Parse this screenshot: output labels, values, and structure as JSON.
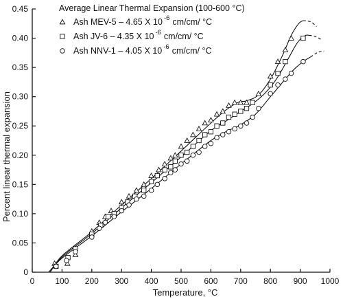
{
  "chart_data": {
    "type": "scatter",
    "title": "",
    "xlabel": "Temperature, °C",
    "ylabel": "Percent linear thermal expansion",
    "xlim": [
      0,
      1000
    ],
    "ylim": [
      0,
      0.45
    ],
    "x_ticks": [
      0,
      100,
      200,
      300,
      400,
      500,
      600,
      700,
      800,
      900,
      1000
    ],
    "y_ticks": [
      0,
      0.05,
      0.1,
      0.15,
      0.2,
      0.25,
      0.3,
      0.35,
      0.4,
      0.45
    ],
    "x_tick_labels": [
      "0",
      "100",
      "200",
      "300",
      "400",
      "500",
      "600",
      "700",
      "800",
      "900",
      "1000"
    ],
    "y_tick_labels": [
      "0",
      "0.05",
      "0.10",
      "0.15",
      "0.20",
      "0.25",
      "0.30",
      "0.35",
      "0.40",
      "0.45"
    ],
    "grid": false,
    "legend_position": "top-left",
    "legend_title": "Average Linear Thermal Expansion (100-600 °C)",
    "series": [
      {
        "name": "Ash MEV-5",
        "legend_label": "Ash MEV-5 – 4.65 X 10",
        "legend_exponent": "-6",
        "legend_unit": "cm/cm/ °C",
        "marker": "triangle",
        "x": [
          75,
          118,
          145,
          200,
          225,
          245,
          265,
          300,
          325,
          350,
          375,
          400,
          425,
          445,
          465,
          480,
          500,
          520,
          540,
          560,
          580,
          600,
          620,
          640,
          660,
          680,
          700,
          720,
          760,
          800,
          825,
          850,
          870
        ],
        "y": [
          0.015,
          0.015,
          0.03,
          0.07,
          0.085,
          0.095,
          0.105,
          0.12,
          0.13,
          0.14,
          0.15,
          0.165,
          0.175,
          0.185,
          0.195,
          0.2,
          0.215,
          0.225,
          0.235,
          0.245,
          0.255,
          0.26,
          0.27,
          0.275,
          0.285,
          0.29,
          0.29,
          0.29,
          0.305,
          0.335,
          0.36,
          0.38,
          0.4
        ],
        "curve": {
          "x": [
            60,
            100,
            200,
            300,
            400,
            500,
            600,
            650,
            690,
            720,
            760,
            800,
            840,
            870,
            895,
            910
          ],
          "y": [
            0.0,
            0.028,
            0.069,
            0.115,
            0.16,
            0.207,
            0.255,
            0.277,
            0.29,
            0.293,
            0.303,
            0.33,
            0.37,
            0.405,
            0.425,
            0.43
          ]
        },
        "extension": {
          "x": [
            910,
            935,
            955
          ],
          "y": [
            0.43,
            0.428,
            0.42
          ]
        }
      },
      {
        "name": "Ash JV-6",
        "legend_label": "Ash JV-6 – 4.35 X 10",
        "legend_exponent": "-6",
        "legend_unit": "cm/cm/ °C",
        "marker": "square",
        "x": [
          80,
          120,
          145,
          200,
          230,
          255,
          275,
          300,
          320,
          345,
          375,
          400,
          420,
          445,
          465,
          480,
          500,
          520,
          540,
          560,
          580,
          600,
          620,
          640,
          660,
          680,
          700,
          720,
          740,
          800,
          825,
          850,
          910
        ],
        "y": [
          0.01,
          0.025,
          0.04,
          0.065,
          0.08,
          0.095,
          0.1,
          0.11,
          0.12,
          0.13,
          0.14,
          0.155,
          0.165,
          0.175,
          0.18,
          0.19,
          0.2,
          0.205,
          0.215,
          0.225,
          0.235,
          0.24,
          0.25,
          0.255,
          0.265,
          0.27,
          0.275,
          0.28,
          0.29,
          0.32,
          0.34,
          0.36,
          0.4
        ],
        "curve": {
          "x": [
            60,
            100,
            200,
            300,
            400,
            500,
            600,
            650,
            700,
            740,
            780,
            820,
            860,
            890,
            915,
            930
          ],
          "y": [
            0.0,
            0.026,
            0.066,
            0.11,
            0.153,
            0.197,
            0.242,
            0.258,
            0.275,
            0.288,
            0.305,
            0.33,
            0.365,
            0.392,
            0.404,
            0.405
          ]
        },
        "extension": {
          "x": [
            930,
            950,
            970
          ],
          "y": [
            0.405,
            0.403,
            0.398
          ]
        }
      },
      {
        "name": "Ash NNV-1",
        "legend_label": "Ash NNV-1 – 4.05 X 10",
        "legend_exponent": "-6",
        "legend_unit": "cm/cm/ °C",
        "marker": "circle",
        "x": [
          80,
          115,
          145,
          200,
          225,
          245,
          275,
          300,
          325,
          350,
          375,
          400,
          420,
          445,
          465,
          480,
          500,
          520,
          540,
          560,
          580,
          600,
          620,
          640,
          660,
          680,
          700,
          720,
          740,
          760,
          800,
          825,
          850,
          870,
          910
        ],
        "y": [
          0.01,
          0.02,
          0.035,
          0.06,
          0.075,
          0.085,
          0.095,
          0.105,
          0.115,
          0.125,
          0.13,
          0.14,
          0.15,
          0.16,
          0.17,
          0.175,
          0.185,
          0.19,
          0.2,
          0.205,
          0.215,
          0.22,
          0.23,
          0.235,
          0.24,
          0.245,
          0.25,
          0.255,
          0.265,
          0.28,
          0.305,
          0.32,
          0.33,
          0.34,
          0.36
        ],
        "curve": {
          "x": [
            55,
            100,
            200,
            300,
            400,
            500,
            600,
            650,
            700,
            750,
            800,
            850,
            880,
            910,
            935
          ],
          "y": [
            0.0,
            0.024,
            0.062,
            0.103,
            0.143,
            0.185,
            0.225,
            0.24,
            0.252,
            0.27,
            0.3,
            0.33,
            0.347,
            0.36,
            0.368
          ]
        },
        "extension": {
          "x": [
            935,
            960,
            980
          ],
          "y": [
            0.368,
            0.376,
            0.378
          ]
        }
      }
    ]
  }
}
